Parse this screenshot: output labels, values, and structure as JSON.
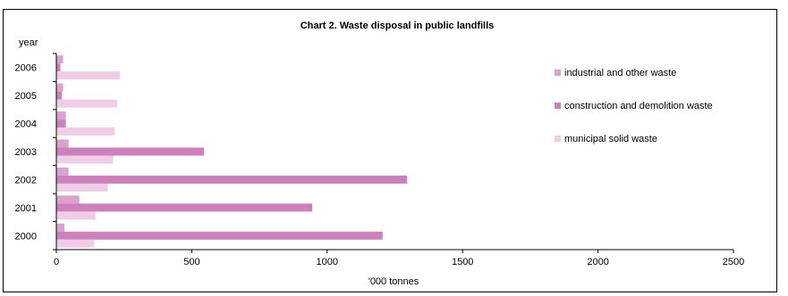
{
  "chart_data": {
    "type": "bar",
    "orientation": "horizontal",
    "title": "Chart 2.  Waste disposal in public landfills",
    "ylabel": "year",
    "xlabel": "'000 tonnes",
    "categories": [
      "2000",
      "2001",
      "2002",
      "2003",
      "2004",
      "2005",
      "2006"
    ],
    "xlim": [
      0,
      2500
    ],
    "xticks": [
      "0",
      "500",
      "1000",
      "1500",
      "2000",
      "2500"
    ],
    "grid": false,
    "legend_position": "right",
    "series": [
      {
        "name": "industrial and other waste",
        "color": "#d9a3cd",
        "values": [
          30,
          85,
          45,
          45,
          35,
          25,
          25
        ]
      },
      {
        "name": "construction and demolition waste",
        "color": "#cc80bc",
        "values": [
          1205,
          945,
          1295,
          545,
          35,
          20,
          15
        ]
      },
      {
        "name": "municipal solid waste",
        "color": "#f0cce6",
        "values": [
          140,
          145,
          190,
          210,
          215,
          225,
          235
        ]
      }
    ]
  }
}
